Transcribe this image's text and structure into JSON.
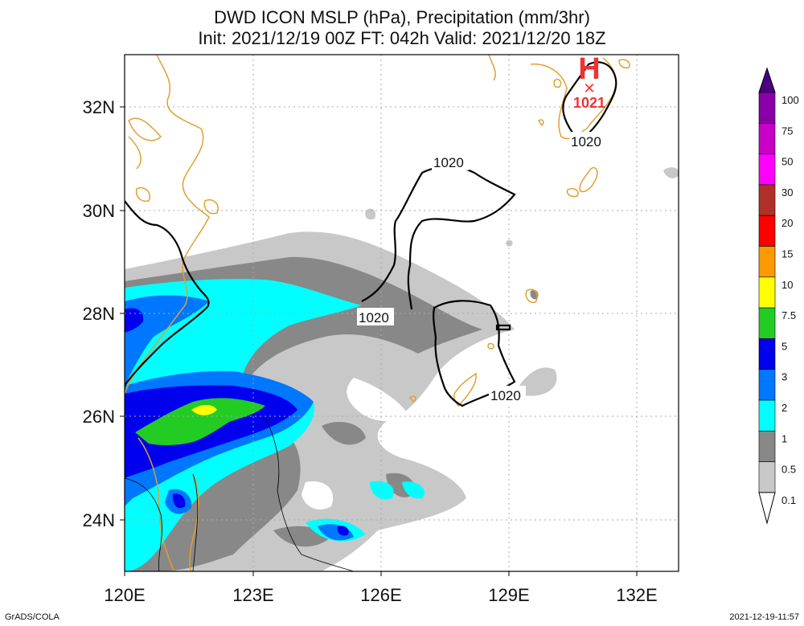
{
  "title": {
    "line1": "DWD ICON MSLP (hPa), Precipitation (mm/3hr)",
    "line2": "Init: 2021/12/19 00Z  FT: 042h  Valid: 2021/12/20 18Z"
  },
  "footer": {
    "left": "GrADS/COLA",
    "right": "2021-12-19-11:57"
  },
  "axes": {
    "x_ticks": [
      "120E",
      "123E",
      "126E",
      "129E",
      "132E"
    ],
    "y_ticks": [
      "32N",
      "30N",
      "28N",
      "26N",
      "24N"
    ]
  },
  "pressure_center": {
    "symbol": "H",
    "value": "1021",
    "marker": "✕"
  },
  "isobar_labels": [
    "1020",
    "1020",
    "1020",
    "1020"
  ],
  "colorbar": {
    "levels": [
      "100",
      "75",
      "50",
      "30",
      "20",
      "15",
      "10",
      "7.5",
      "5",
      "3",
      "2",
      "1",
      "0.5",
      "0.1"
    ],
    "colors": [
      "#8a00a8",
      "#c800c8",
      "#ff00ff",
      "#b03028",
      "#ff0000",
      "#ff9900",
      "#ffff00",
      "#22cc22",
      "#0000ee",
      "#0077ff",
      "#00ffff",
      "#888888",
      "#c8c8c8",
      "#ffffff"
    ],
    "top_color": "#4b0082"
  },
  "colors": {
    "coast": "#e0a030",
    "grid": "#aaaaaa",
    "isobar": "#000000",
    "high": "#ee3333",
    "rain_light": "#c8c8c8",
    "rain_1": "#888888",
    "rain_2": "#00ffff",
    "rain_3": "#0077ff",
    "rain_5": "#0000ee",
    "rain_7": "#22cc22",
    "rain_10": "#ffff00"
  }
}
